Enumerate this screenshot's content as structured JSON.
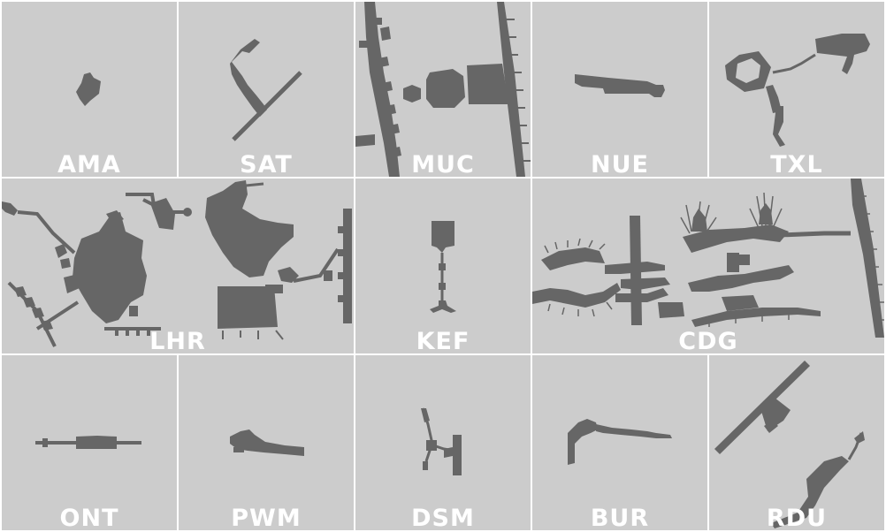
{
  "colors": {
    "tile_background": "#cccccc",
    "terminal_fill": "#666666",
    "label_color": "#ffffff",
    "gutter": "#ffffff"
  },
  "airports": [
    {
      "code": "AMA"
    },
    {
      "code": "SAT"
    },
    {
      "code": "MUC"
    },
    {
      "code": "NUE"
    },
    {
      "code": "TXL"
    },
    {
      "code": "LHR"
    },
    {
      "code": "KEF"
    },
    {
      "code": "CDG"
    },
    {
      "code": "ONT"
    },
    {
      "code": "PWM"
    },
    {
      "code": "DSM"
    },
    {
      "code": "BUR"
    },
    {
      "code": "RDU"
    }
  ]
}
